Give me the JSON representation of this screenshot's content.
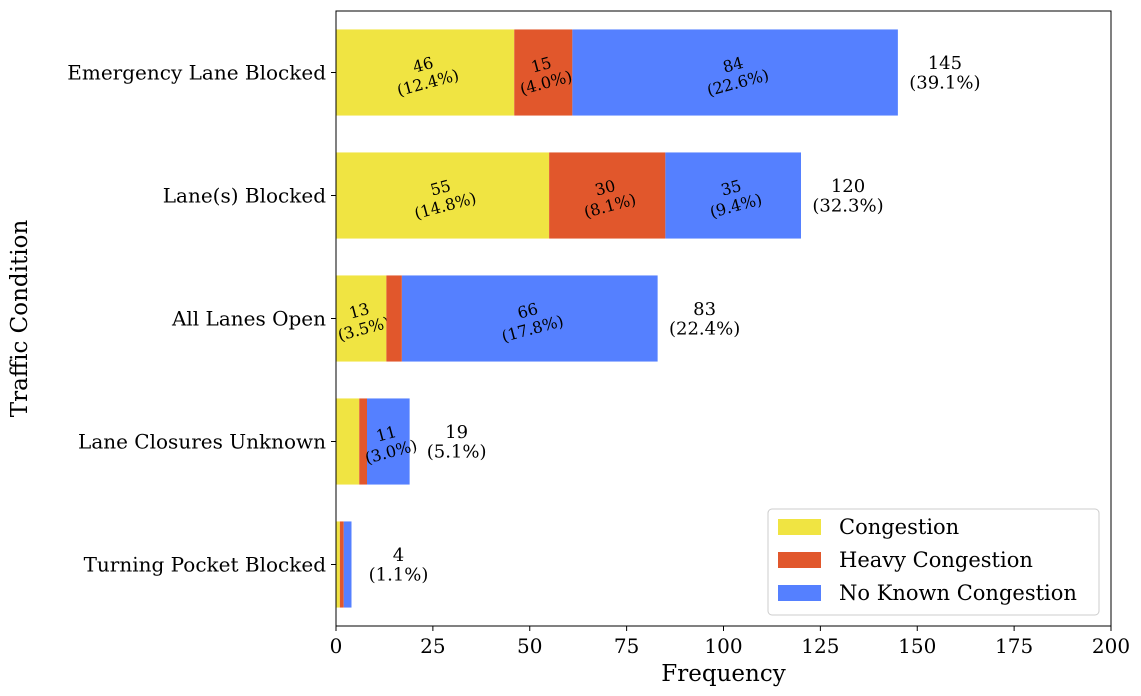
{
  "chart_data": {
    "type": "bar",
    "orientation": "horizontal",
    "stacked": true,
    "xlabel": "Frequency",
    "ylabel": "Traffic Condition",
    "xlim": [
      0,
      200
    ],
    "xticks": [
      0,
      25,
      50,
      75,
      100,
      125,
      150,
      175,
      200
    ],
    "categories": [
      "Emergency Lane Blocked",
      "Lane(s) Blocked",
      "All Lanes Open",
      "Lane Closures Unknown",
      "Turning Pocket Blocked"
    ],
    "series": [
      {
        "name": "Congestion",
        "color": "#f0e442",
        "values": [
          46,
          55,
          13,
          6,
          1
        ]
      },
      {
        "name": "Heavy Congestion",
        "color": "#e1572c",
        "values": [
          15,
          30,
          4,
          2,
          1
        ]
      },
      {
        "name": "No Known Congestion",
        "color": "#5580ff",
        "values": [
          84,
          35,
          66,
          11,
          2
        ]
      }
    ],
    "segment_labels": [
      [
        {
          "line1": "46",
          "line2": "(12.4%)"
        },
        {
          "line1": "15",
          "line2": "(4.0%)"
        },
        {
          "line1": "84",
          "line2": "(22.6%)"
        }
      ],
      [
        {
          "line1": "55",
          "line2": "(14.8%)"
        },
        {
          "line1": "30",
          "line2": "(8.1%)"
        },
        {
          "line1": "35",
          "line2": "(9.4%)"
        }
      ],
      [
        {
          "line1": "13",
          "line2": "(3.5%)"
        },
        null,
        {
          "line1": "66",
          "line2": "(17.8%)"
        }
      ],
      [
        null,
        null,
        {
          "line1": "11",
          "line2": "(3.0%)"
        }
      ],
      [
        null,
        null,
        null
      ]
    ],
    "totals": [
      {
        "value": 145,
        "line1": "145",
        "line2": "(39.1%)"
      },
      {
        "value": 120,
        "line1": "120",
        "line2": "(32.3%)"
      },
      {
        "value": 83,
        "line1": "83",
        "line2": "(22.4%)"
      },
      {
        "value": 19,
        "line1": "19",
        "line2": "(5.1%)"
      },
      {
        "value": 4,
        "line1": "4",
        "line2": "(1.1%)"
      }
    ],
    "legend_position": "lower-right",
    "grid": false
  }
}
